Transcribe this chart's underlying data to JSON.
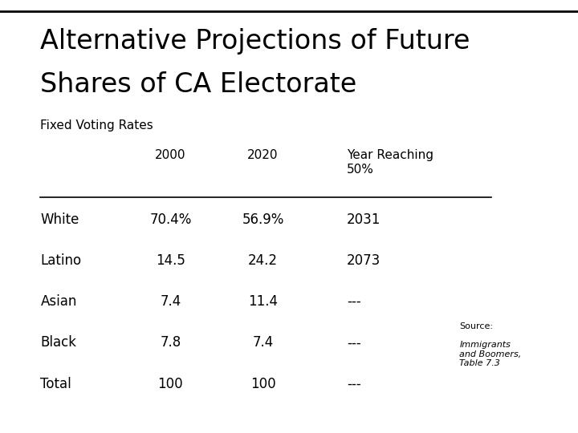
{
  "title_line1": "Alternative Projections of Future",
  "title_line2": "Shares of CA Electorate",
  "subtitle": "Fixed Voting Rates",
  "col_header_2000": "2000",
  "col_header_2020": "2020",
  "col_header_year": "Year Reaching\n50%",
  "rows": [
    [
      "White",
      "70.4%",
      "56.9%",
      "2031"
    ],
    [
      "Latino",
      "14.5",
      "24.2",
      "2073"
    ],
    [
      "Asian",
      "7.4",
      "11.4",
      "---"
    ],
    [
      "Black",
      "7.8",
      "7.4",
      "---"
    ],
    [
      "Total",
      "100",
      "100",
      "---"
    ]
  ],
  "source_line1": "Source:",
  "source_line2": "Immigrants\nand Boomers,\nTable 7.3",
  "background_color": "#ffffff",
  "text_color": "#000000",
  "line_color": "#000000",
  "title_fontsize": 24,
  "subtitle_fontsize": 11,
  "header_fontsize": 11,
  "cell_fontsize": 12,
  "source_fontsize": 8
}
